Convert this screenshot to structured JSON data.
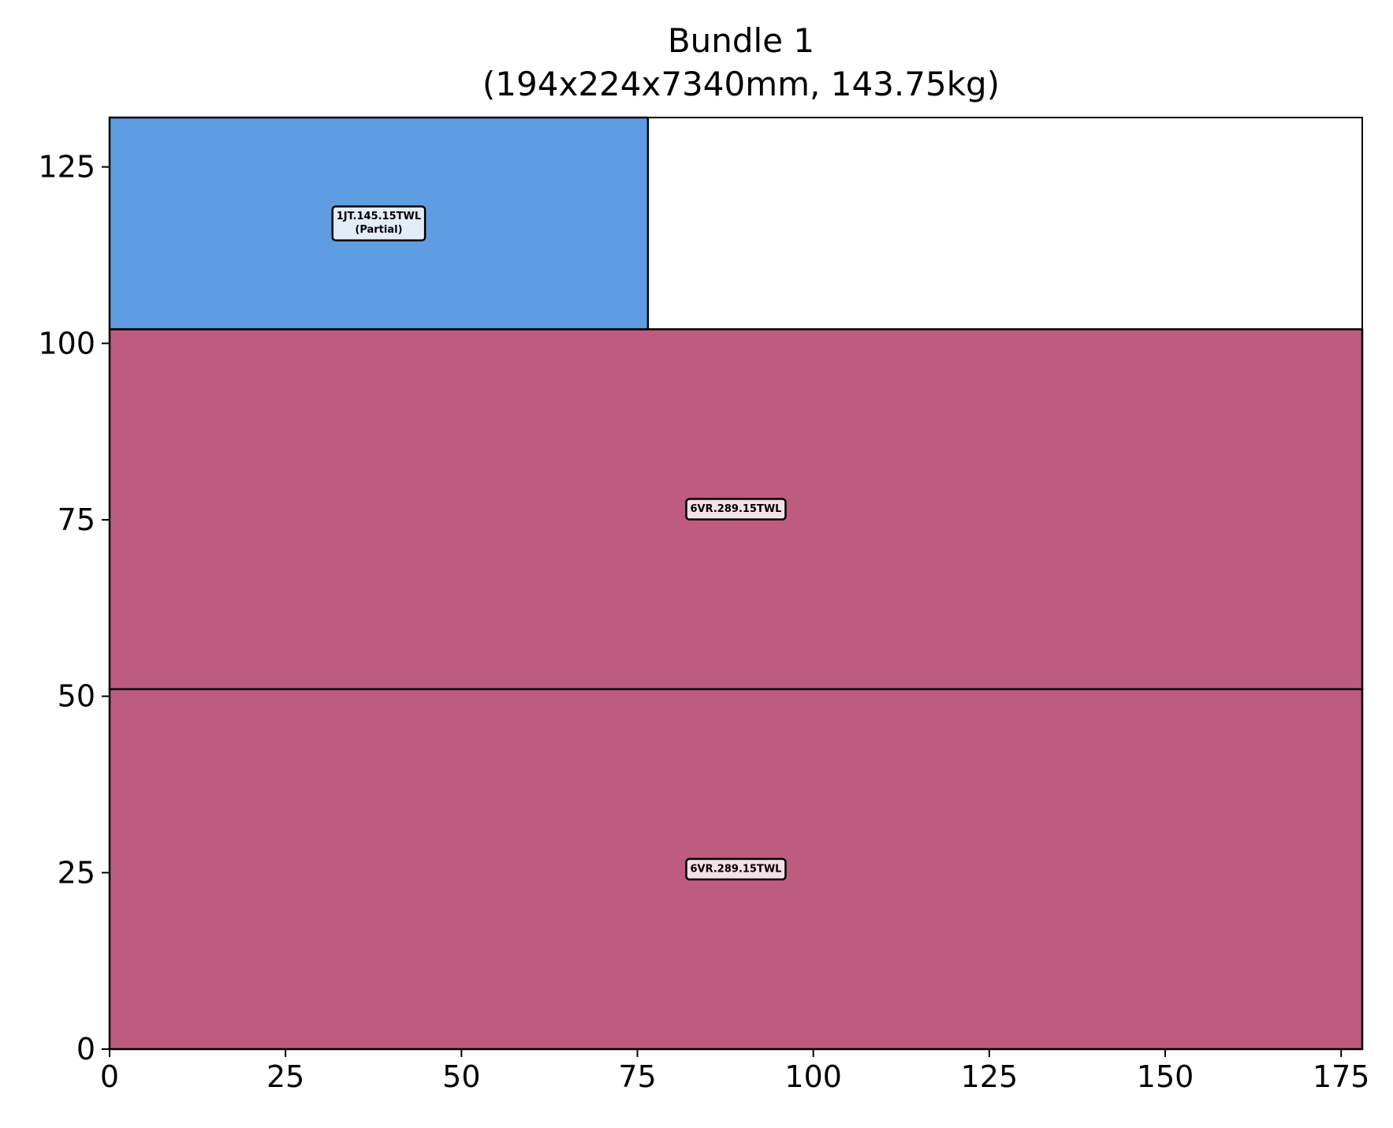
{
  "chart_data": {
    "type": "rectangle-packing",
    "title_lines": [
      "Bundle 1",
      "(194x224x7340mm, 143.75kg)"
    ],
    "xlabel": "",
    "ylabel": "",
    "xlim": [
      0,
      178
    ],
    "ylim": [
      0,
      132
    ],
    "x_ticks": [
      0,
      25,
      50,
      75,
      100,
      125,
      150,
      175
    ],
    "y_ticks": [
      0,
      25,
      50,
      75,
      100,
      125
    ],
    "grid": false,
    "rectangles": [
      {
        "label_lines": [
          "6VR.289.15TWL"
        ],
        "x": 0,
        "y": 0,
        "width": 178,
        "height": 51,
        "color": "#bd5c7e"
      },
      {
        "label_lines": [
          "6VR.289.15TWL"
        ],
        "x": 0,
        "y": 51,
        "width": 178,
        "height": 51,
        "color": "#bd5c7e"
      },
      {
        "label_lines": [
          "1JT.145.15TWL",
          "(Partial)"
        ],
        "x": 0,
        "y": 102,
        "width": 76.5,
        "height": 30,
        "color": "#5f9de3"
      }
    ]
  }
}
